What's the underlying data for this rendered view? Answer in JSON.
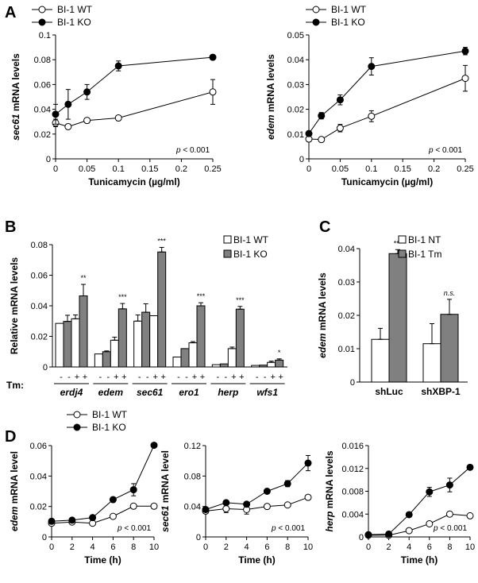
{
  "panel_labels": [
    "A",
    "B",
    "C",
    "D"
  ],
  "chart_data": [
    {
      "panel": "A",
      "type": "line",
      "title": "",
      "xlabel": "Tunicamycin (µg/ml)",
      "ylabel_italic": "sec61",
      "ylabel_rest": " mRNA levels",
      "xlim": [
        0,
        0.25
      ],
      "ylim": [
        0,
        0.1
      ],
      "xticks": [
        0,
        0.05,
        0.1,
        0.15,
        0.2,
        0.25
      ],
      "xtick_labels": [
        "0",
        "0.05",
        "0.1",
        "0.15",
        "0.2",
        "0.25"
      ],
      "yticks": [
        0,
        0.02,
        0.04,
        0.06,
        0.08,
        0.1
      ],
      "ytick_labels": [
        "0",
        "0.02",
        "0.04",
        "0.06",
        "0.08",
        "0.1"
      ],
      "annotation": "p < 0.001",
      "series": [
        {
          "name": "BI-1 WT",
          "marker": "open",
          "x": [
            0,
            0.02,
            0.05,
            0.1,
            0.25
          ],
          "y": [
            0.029,
            0.026,
            0.031,
            0.033,
            0.054
          ],
          "err": [
            0.003,
            0.002,
            0.002,
            0.002,
            0.01
          ]
        },
        {
          "name": "BI-1 KO",
          "marker": "filled",
          "x": [
            0,
            0.02,
            0.05,
            0.1,
            0.25
          ],
          "y": [
            0.036,
            0.044,
            0.054,
            0.075,
            0.082
          ],
          "err": [
            0.008,
            0.012,
            0.006,
            0.004,
            0.002
          ]
        }
      ]
    },
    {
      "panel": "A2",
      "type": "line",
      "title": "",
      "xlabel": "Tunicamycin (µg/ml)",
      "ylabel_italic": "edem",
      "ylabel_rest": " mRNA levels",
      "xlim": [
        0,
        0.25
      ],
      "ylim": [
        0,
        0.05
      ],
      "xticks": [
        0,
        0.05,
        0.1,
        0.15,
        0.2,
        0.25
      ],
      "xtick_labels": [
        "0",
        "0.05",
        "0.1",
        "0.15",
        "0.2",
        "0.25"
      ],
      "yticks": [
        0,
        0.01,
        0.02,
        0.03,
        0.04,
        0.05
      ],
      "ytick_labels": [
        "0",
        "0.01",
        "0.02",
        "0.03",
        "0.04",
        "0.05"
      ],
      "annotation": "p < 0.001",
      "series": [
        {
          "name": "BI-1 WT",
          "marker": "open",
          "x": [
            0,
            0.02,
            0.05,
            0.1,
            0.25
          ],
          "y": [
            0.008,
            0.0078,
            0.0124,
            0.0172,
            0.0325
          ],
          "err": [
            0.001,
            0.0006,
            0.0015,
            0.0022,
            0.0052
          ]
        },
        {
          "name": "BI-1 KO",
          "marker": "filled",
          "x": [
            0,
            0.02,
            0.05,
            0.1,
            0.25
          ],
          "y": [
            0.0102,
            0.0174,
            0.0238,
            0.0373,
            0.0435
          ],
          "err": [
            0.001,
            0.0013,
            0.002,
            0.0035,
            0.0015
          ]
        }
      ]
    },
    {
      "panel": "B",
      "type": "bar",
      "title": "",
      "xlabel": "",
      "ylabel": "Relative mRNA levels",
      "ylim": [
        0,
        0.08
      ],
      "yticks": [
        0,
        0.02,
        0.04,
        0.06,
        0.08
      ],
      "ytick_labels": [
        "0",
        "0.02",
        "0.04",
        "0.06",
        "0.08"
      ],
      "tm_label": "Tm:",
      "tm_signs": [
        "-",
        "+"
      ],
      "legend": [
        "BI-1 WT",
        "BI-1 KO"
      ],
      "categories": [
        "erdj4",
        "edem",
        "sec61",
        "ero1",
        "herp",
        "wfs1"
      ],
      "groups": [
        {
          "gene": "erdj4",
          "values": [
            0.0285,
            0.0298,
            0.0315,
            0.0465
          ],
          "err": [
            0.0,
            0.004,
            0.0025,
            0.0075
          ],
          "sig": "**"
        },
        {
          "gene": "edem",
          "values": [
            0.0085,
            0.01,
            0.0175,
            0.038
          ],
          "err": [
            0.0,
            0.0005,
            0.002,
            0.0035
          ],
          "sig": "***"
        },
        {
          "gene": "sec61",
          "values": [
            0.03,
            0.0358,
            0.0335,
            0.0752
          ],
          "err": [
            0.004,
            0.0055,
            0.0,
            0.003
          ],
          "sig": "***"
        },
        {
          "gene": "ero1",
          "values": [
            0.0065,
            0.012,
            0.0158,
            0.04
          ],
          "err": [
            0.0,
            0.0,
            0.0008,
            0.002
          ],
          "sig": "***"
        },
        {
          "gene": "herp",
          "values": [
            0.0015,
            0.002,
            0.012,
            0.0378
          ],
          "err": [
            0.0,
            0.0,
            0.001,
            0.0018
          ],
          "sig": "***"
        },
        {
          "gene": "wfs1",
          "values": [
            0.001,
            0.0012,
            0.003,
            0.0045
          ],
          "err": [
            0.0,
            0.0,
            0.0008,
            0.0008
          ],
          "sig": "*"
        }
      ]
    },
    {
      "panel": "C",
      "type": "bar",
      "title": "",
      "ylabel_italic": "edem",
      "ylabel_rest": " mRNA levels",
      "ylim": [
        0,
        0.04
      ],
      "yticks": [
        0,
        0.01,
        0.02,
        0.03,
        0.04
      ],
      "ytick_labels": [
        "0",
        "0.01",
        "0.02",
        "0.03",
        "0.04"
      ],
      "legend": [
        "BI-1 NT",
        "BI-1 Tm"
      ],
      "categories": [
        "shLuc",
        "shXBP-1"
      ],
      "groups": [
        {
          "name": "shLuc",
          "values": [
            0.0128,
            0.0385
          ],
          "err": [
            0.0033,
            0.0012
          ],
          "sig": "***",
          "sig_italic": false
        },
        {
          "name": "shXBP-1",
          "values": [
            0.0115,
            0.0203
          ],
          "err": [
            0.006,
            0.0045
          ],
          "sig": "n.s.",
          "sig_italic": true
        }
      ]
    },
    {
      "panel": "D",
      "type": "line",
      "title": "",
      "xlabel": "Time (h)",
      "ylabel_italic": "edem",
      "ylabel_rest": " mRNA level",
      "xlim": [
        0,
        10
      ],
      "ylim": [
        0,
        0.06
      ],
      "xticks": [
        0,
        2,
        4,
        6,
        8,
        10
      ],
      "xtick_labels": [
        "0",
        "2",
        "4",
        "6",
        "8",
        "10"
      ],
      "yticks": [
        0,
        0.02,
        0.04,
        0.06
      ],
      "ytick_labels": [
        "0",
        "0.02",
        "0.04",
        "0.06"
      ],
      "annotation": "p < 0.001",
      "series": [
        {
          "name": "BI-1 WT",
          "marker": "open",
          "x": [
            0,
            2,
            4,
            6,
            8,
            10
          ],
          "y": [
            0.009,
            0.0098,
            0.009,
            0.0135,
            0.0202,
            0.0202
          ],
          "err": [
            0.0008,
            0.0005,
            0.0008,
            0.0008,
            0.0008,
            0.0008
          ]
        },
        {
          "name": "BI-1 KO",
          "marker": "filled",
          "x": [
            0,
            2,
            4,
            6,
            8,
            10
          ],
          "y": [
            0.0103,
            0.011,
            0.0127,
            0.0245,
            0.031,
            0.0602
          ],
          "err": [
            0.0012,
            0.0008,
            0.001,
            0.0015,
            0.004,
            0.0005
          ]
        }
      ]
    },
    {
      "panel": "D2",
      "type": "line",
      "title": "",
      "xlabel": "Time (h)",
      "ylabel_italic": "sec61",
      "ylabel_rest": " mRNA level",
      "xlim": [
        0,
        10
      ],
      "ylim": [
        0,
        0.12
      ],
      "xticks": [
        0,
        2,
        4,
        6,
        8,
        10
      ],
      "xtick_labels": [
        "0",
        "2",
        "4",
        "6",
        "8",
        "10"
      ],
      "yticks": [
        0,
        0.04,
        0.08,
        0.12
      ],
      "ytick_labels": [
        "0",
        "0.04",
        "0.08",
        "0.12"
      ],
      "annotation": "p < 0.001",
      "series": [
        {
          "name": "BI-1 WT",
          "marker": "open",
          "x": [
            0,
            2,
            4,
            6,
            8,
            10
          ],
          "y": [
            0.034,
            0.037,
            0.036,
            0.04,
            0.042,
            0.052
          ],
          "err": [
            0.003,
            0.005,
            0.006,
            0.002,
            0.002,
            0.002
          ]
        },
        {
          "name": "BI-1 KO",
          "marker": "filled",
          "x": [
            0,
            2,
            4,
            6,
            8,
            10
          ],
          "y": [
            0.036,
            0.045,
            0.043,
            0.06,
            0.07,
            0.097
          ],
          "err": [
            0.002,
            0.002,
            0.002,
            0.002,
            0.004,
            0.01
          ]
        }
      ]
    },
    {
      "panel": "D3",
      "type": "line",
      "title": "",
      "xlabel": "Time (h)",
      "ylabel_italic": "herp",
      "ylabel_rest": " mRNA levels",
      "xlim": [
        0,
        10
      ],
      "ylim": [
        0,
        0.016
      ],
      "xticks": [
        0,
        2,
        4,
        6,
        8,
        10
      ],
      "xtick_labels": [
        "0",
        "2",
        "4",
        "6",
        "8",
        "10"
      ],
      "yticks": [
        0,
        0.004,
        0.008,
        0.012,
        0.016
      ],
      "ytick_labels": [
        "0",
        "0.004",
        "0.008",
        "0.012",
        "0.016"
      ],
      "annotation": "p < 0.001",
      "series": [
        {
          "name": "BI-1 WT",
          "marker": "open",
          "x": [
            0,
            2,
            4,
            6,
            8,
            10
          ],
          "y": [
            0.0003,
            0.0003,
            0.0011,
            0.0023,
            0.004,
            0.0037
          ],
          "err": [
            0.0001,
            0.0001,
            0.0001,
            0.0003,
            0.0004,
            0.0003
          ]
        },
        {
          "name": "BI-1 KO",
          "marker": "filled",
          "x": [
            0,
            2,
            4,
            6,
            8,
            10
          ],
          "y": [
            0.0004,
            0.0005,
            0.0039,
            0.0079,
            0.0091,
            0.0122
          ],
          "err": [
            0.0001,
            0.0001,
            0.0002,
            0.0008,
            0.0012,
            0.0002
          ]
        }
      ]
    }
  ]
}
